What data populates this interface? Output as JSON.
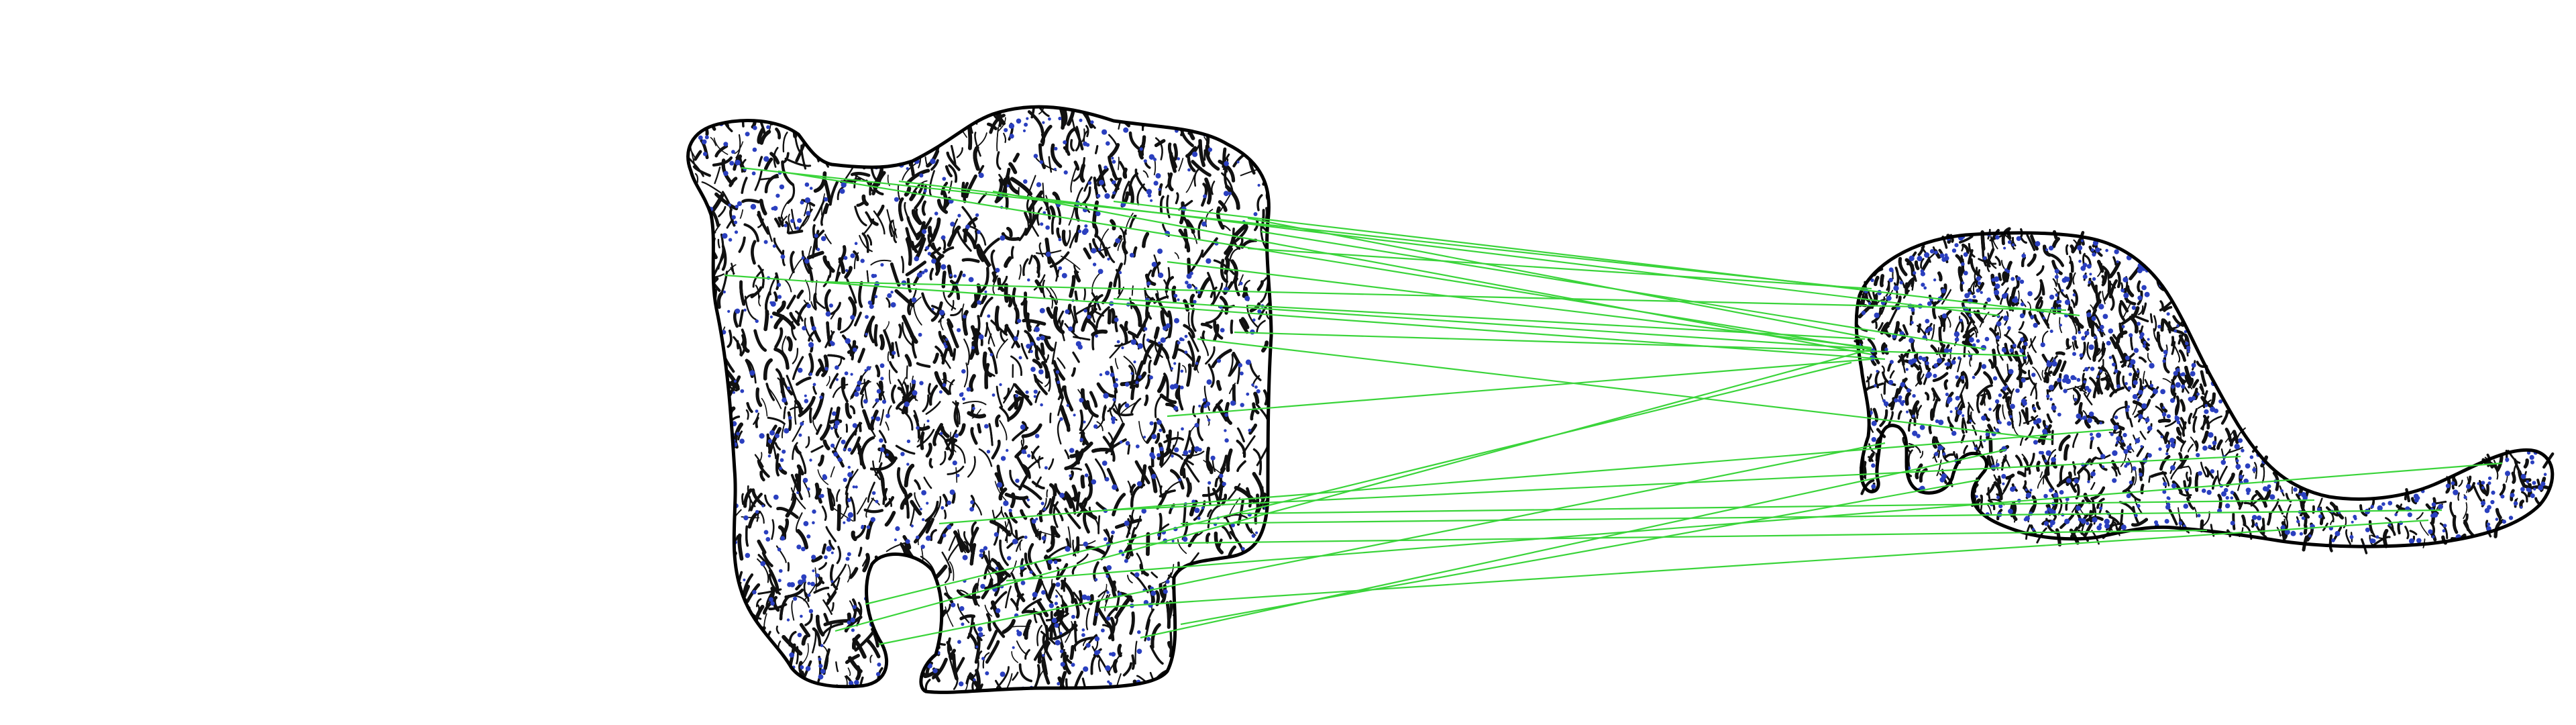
{
  "scene": {
    "background_color": "#ffffff",
    "outline_color": "#000000",
    "texture_color": "#111111",
    "keypoint_color": "#2a3fbf",
    "match_line_color": "#3ad43a"
  },
  "figures": [
    {
      "name": "left-cat-shape",
      "kind": "textured silhouette"
    },
    {
      "name": "right-anteater-shape",
      "kind": "textured silhouette"
    }
  ]
}
